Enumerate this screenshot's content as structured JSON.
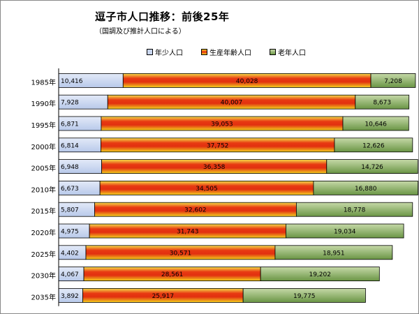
{
  "title": "逗子市人口推移：前後25年",
  "subtitle": "（国調及び推計人口による）",
  "colors": {
    "young": "#c9d6ef",
    "working_top": "#f4d21e",
    "working_mid": "#e62a10",
    "working_bottom": "#f4d21e",
    "elderly_top": "#c3d6a4",
    "elderly_bottom": "#6f9a48",
    "border": "#000000"
  },
  "chart_data": {
    "type": "bar",
    "orientation": "horizontal",
    "stacked": true,
    "categories": [
      "1985年",
      "1990年",
      "1995年",
      "2000年",
      "2005年",
      "2010年",
      "2015年",
      "2020年",
      "2025年",
      "2030年",
      "2035年"
    ],
    "series": [
      {
        "name": "年少人口",
        "values": [
          10416,
          7928,
          6871,
          6814,
          6948,
          6673,
          5807,
          4975,
          4402,
          4067,
          3892
        ],
        "value_labels": [
          "10,416",
          "7,928",
          "6,871",
          "6,814",
          "6,948",
          "6,673",
          "5,807",
          "4,975",
          "4,402",
          "4,067",
          "3,892"
        ]
      },
      {
        "name": "生産年齢人口",
        "values": [
          40028,
          40007,
          39053,
          37752,
          36358,
          34505,
          32602,
          31743,
          30571,
          28561,
          25917
        ],
        "value_labels": [
          "40,028",
          "40,007",
          "39,053",
          "37,752",
          "36,358",
          "34,505",
          "32,602",
          "31,743",
          "30,571",
          "28,561",
          "25,917"
        ]
      },
      {
        "name": "老年人口",
        "values": [
          7208,
          8673,
          10646,
          12626,
          14726,
          16880,
          18778,
          19034,
          18951,
          19202,
          19775
        ],
        "value_labels": [
          "7,208",
          "8,673",
          "10,646",
          "12,626",
          "14,726",
          "16,880",
          "18,778",
          "19,034",
          "18,951",
          "19,202",
          "19,775"
        ]
      }
    ],
    "xlim": [
      0,
      58000
    ],
    "legend_position": "top",
    "grid": false
  }
}
